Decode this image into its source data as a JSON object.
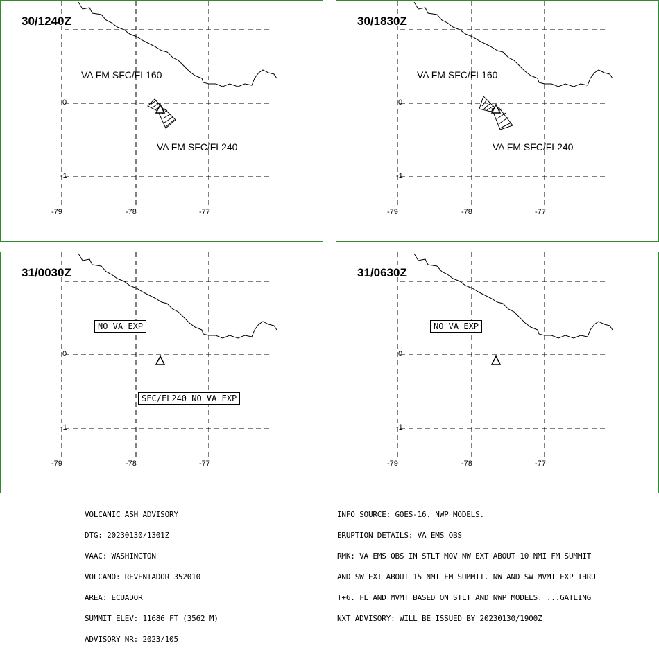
{
  "panels": [
    {
      "time": "30/1240Z",
      "label_a": "VA FM SFC/FL160",
      "label_b": "VA FM SFC/FL240"
    },
    {
      "time": "30/1830Z",
      "label_a": "VA FM SFC/FL160",
      "label_b": "VA FM SFC/FL240"
    },
    {
      "time": "31/0030Z",
      "label_a": "NO VA EXP",
      "label_b": "SFC/FL240 NO VA EXP"
    },
    {
      "time": "31/0630Z",
      "label_a": "NO VA EXP"
    }
  ],
  "axes": {
    "lon_ticks": [
      "-79",
      "-78",
      "-77"
    ],
    "lat_ticks": [
      "0",
      "-1"
    ]
  },
  "advisory_left": [
    "VOLCANIC ASH ADVISORY",
    "DTG: 20230130/1301Z",
    "VAAC: WASHINGTON",
    "VOLCANO: REVENTADOR 352010",
    "AREA: ECUADOR",
    "SUMMIT ELEV: 11686 FT (3562 M)",
    "ADVISORY NR: 2023/105"
  ],
  "advisory_right": [
    "INFO SOURCE: GOES-16. NWP MODELS.",
    "ERUPTION DETAILS: VA EMS OBS",
    "RMK: VA EMS OBS IN STLT MOV NW EXT ABOUT 10 NMI FM SUMMIT",
    "AND SW EXT ABOUT 15 NMI FM SUMMIT. NW AND SW MVMT EXP THRU",
    "T+6. FL AND MVMT BASED ON STLT AND NWP MODELS. ...GATLING",
    "NXT ADVISORY: WILL BE ISSUED BY 20230130/1900Z"
  ],
  "colors": {
    "border": "#2e8b2e",
    "ink": "#000000"
  },
  "icons": {
    "volcano": "triangle-volcano-icon"
  }
}
